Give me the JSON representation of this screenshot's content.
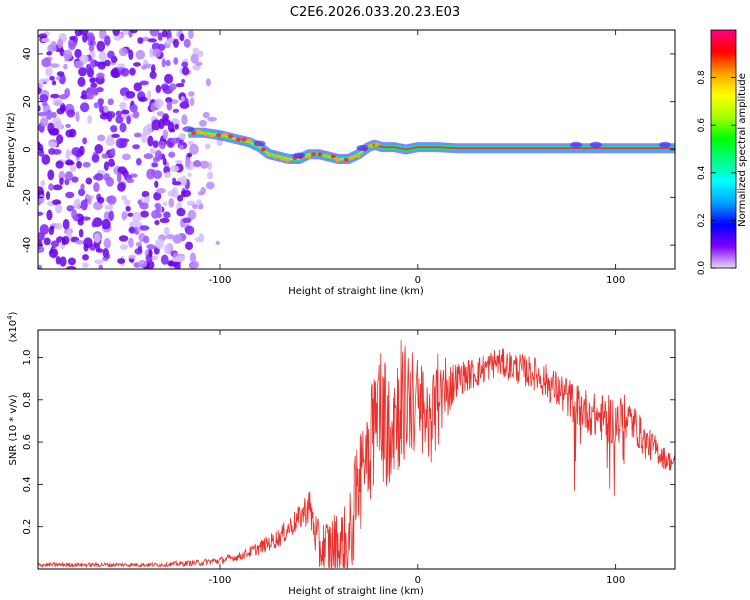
{
  "title": "C2E6.2026.033.20.23.E03",
  "chart_data": [
    {
      "type": "heatmap",
      "xlabel": "Height of straight line (km)",
      "ylabel": "Frequency (Hz)",
      "xlim": [
        -192,
        130
      ],
      "ylim": [
        -50,
        50
      ],
      "xticks": [
        -100,
        0,
        100
      ],
      "yticks": [
        -40,
        -20,
        0,
        20,
        40
      ],
      "colorbar": {
        "label": "Normalized spectral amplitude",
        "range": [
          0.0,
          1.0
        ],
        "ticks": [
          "0.0",
          "0.2",
          "0.4",
          "0.6",
          "0.8"
        ],
        "colors": [
          "#e8d8f8",
          "#7f00ff",
          "#0000ff",
          "#00a0ff",
          "#00ffff",
          "#00ff80",
          "#00ff00",
          "#aaff00",
          "#ffff00",
          "#ffa000",
          "#ff0000",
          "#ff0080"
        ]
      },
      "ridge": {
        "x": [
          -116,
          -108,
          -100,
          -95,
          -90,
          -85,
          -80,
          -75,
          -70,
          -65,
          -60,
          -55,
          -50,
          -45,
          -40,
          -35,
          -30,
          -25,
          -22,
          -18,
          -12,
          -6,
          0,
          5,
          10,
          20,
          40,
          60,
          80,
          100,
          120,
          130
        ],
        "y": [
          7,
          7,
          6,
          5,
          4,
          3,
          1,
          -2,
          -3,
          -4,
          -4,
          -2,
          -2,
          -3,
          -4,
          -4,
          -2,
          1,
          2,
          1,
          1,
          0,
          1,
          1,
          1,
          0.5,
          0.5,
          0.5,
          0.5,
          0.5,
          0.5,
          0.5
        ]
      }
    },
    {
      "type": "line",
      "xlabel": "Height of straight line (km)",
      "ylabel": "SNR (10 * v/v)",
      "yscale_label": "(x10",
      "yscale_exp": "4",
      "yscale_close": ")",
      "xlim": [
        -192,
        130
      ],
      "ylim": [
        0,
        1.13
      ],
      "xticks": [
        -100,
        0,
        100
      ],
      "yticks": [
        0.2,
        0.4,
        0.6,
        0.8,
        1.0
      ],
      "color": "#e8302c",
      "envelope": {
        "x": [
          -192,
          -160,
          -130,
          -110,
          -100,
          -90,
          -80,
          -70,
          -60,
          -55,
          -50,
          -40,
          -35,
          -30,
          -25,
          -20,
          -15,
          -10,
          -5,
          0,
          5,
          10,
          15,
          20,
          30,
          40,
          50,
          60,
          70,
          80,
          90,
          100,
          105,
          110,
          115,
          120,
          125,
          130
        ],
        "y": [
          0.02,
          0.02,
          0.02,
          0.03,
          0.04,
          0.06,
          0.1,
          0.15,
          0.24,
          0.3,
          0.1,
          0.1,
          0.1,
          0.4,
          0.6,
          0.75,
          0.7,
          0.75,
          0.8,
          0.76,
          0.7,
          0.75,
          0.85,
          0.9,
          0.93,
          0.98,
          0.95,
          0.92,
          0.85,
          0.78,
          0.72,
          0.7,
          0.72,
          0.68,
          0.6,
          0.57,
          0.52,
          0.5
        ]
      },
      "noise": {
        "x": [
          -192,
          -130,
          -90,
          -60,
          -30,
          -20,
          -10,
          0,
          10,
          20,
          40,
          60,
          80,
          100,
          130
        ],
        "amp": [
          0.01,
          0.01,
          0.02,
          0.06,
          0.25,
          0.35,
          0.3,
          0.25,
          0.2,
          0.08,
          0.07,
          0.08,
          0.1,
          0.12,
          0.04
        ]
      }
    }
  ]
}
